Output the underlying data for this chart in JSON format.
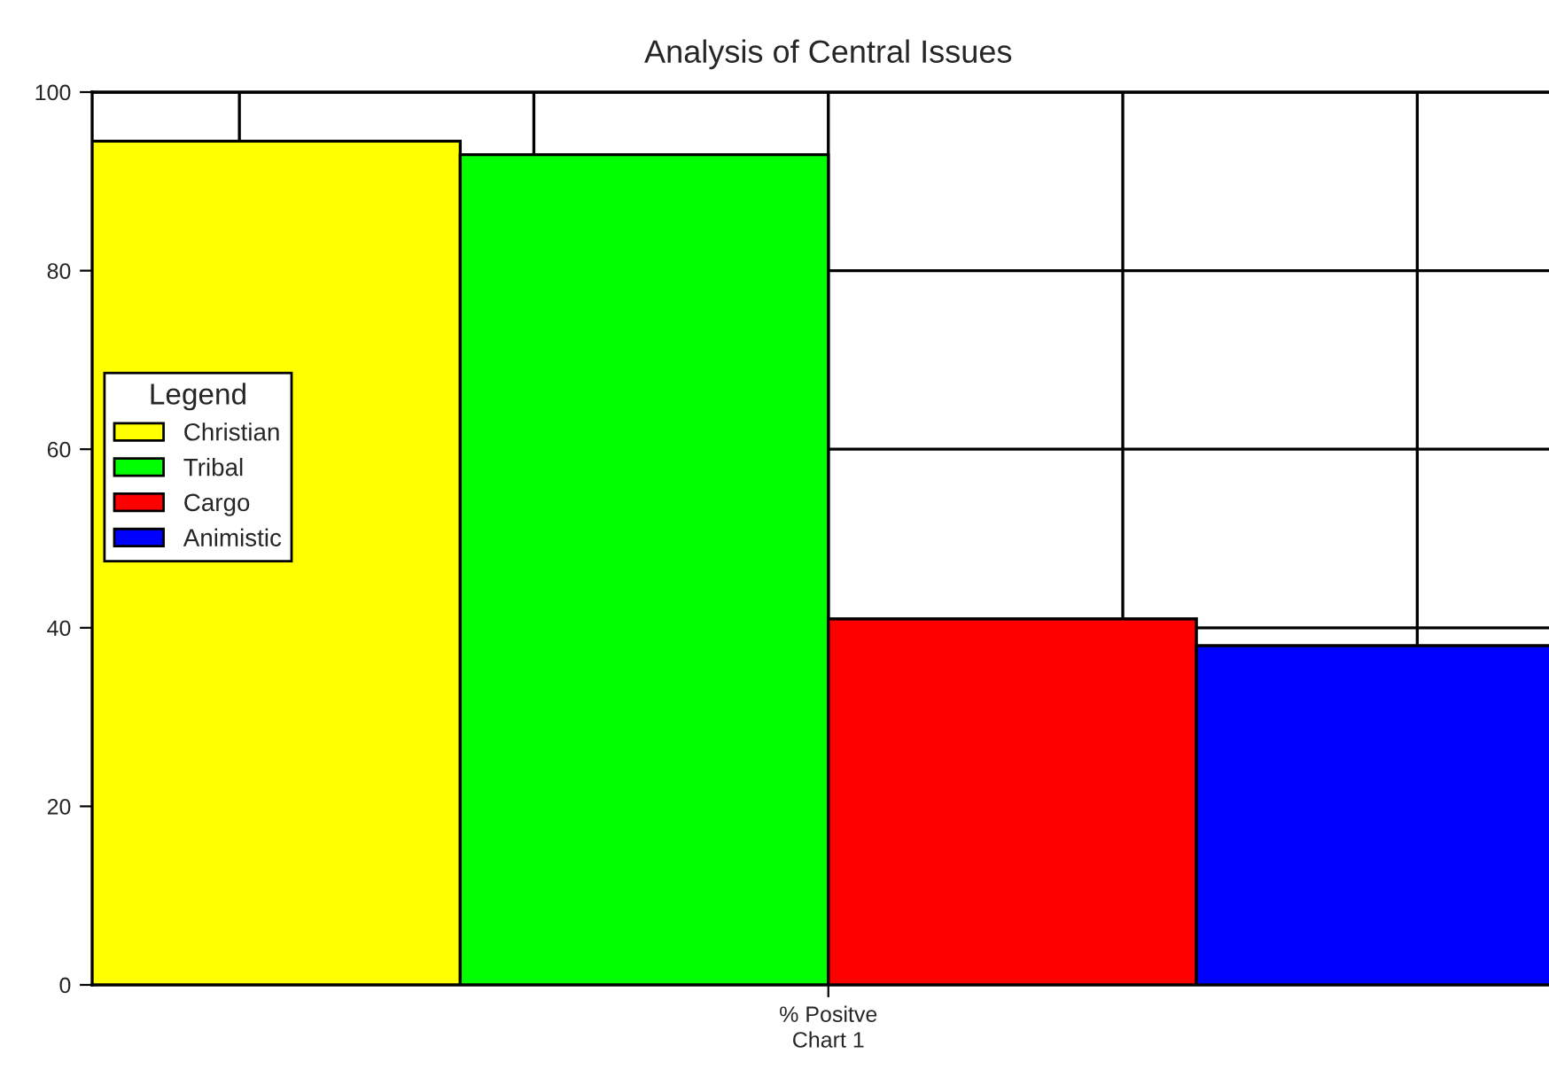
{
  "chart_data": {
    "type": "bar",
    "title": "Analysis of Central Issues",
    "xlabel": "Chart 1",
    "categories": [
      "% Positve"
    ],
    "series": [
      {
        "name": "Christian",
        "color": "#ffff00",
        "values": [
          94.5
        ]
      },
      {
        "name": "Tribal",
        "color": "#00ff00",
        "values": [
          93
        ]
      },
      {
        "name": "Cargo",
        "color": "#ff0000",
        "values": [
          41
        ]
      },
      {
        "name": "Animistic",
        "color": "#0000ff",
        "values": [
          38
        ]
      }
    ],
    "ylim": [
      0,
      100
    ],
    "yticks": [
      0,
      20,
      40,
      60,
      80,
      100
    ],
    "grid": true,
    "legend": "left",
    "legend_title": "Legend"
  }
}
